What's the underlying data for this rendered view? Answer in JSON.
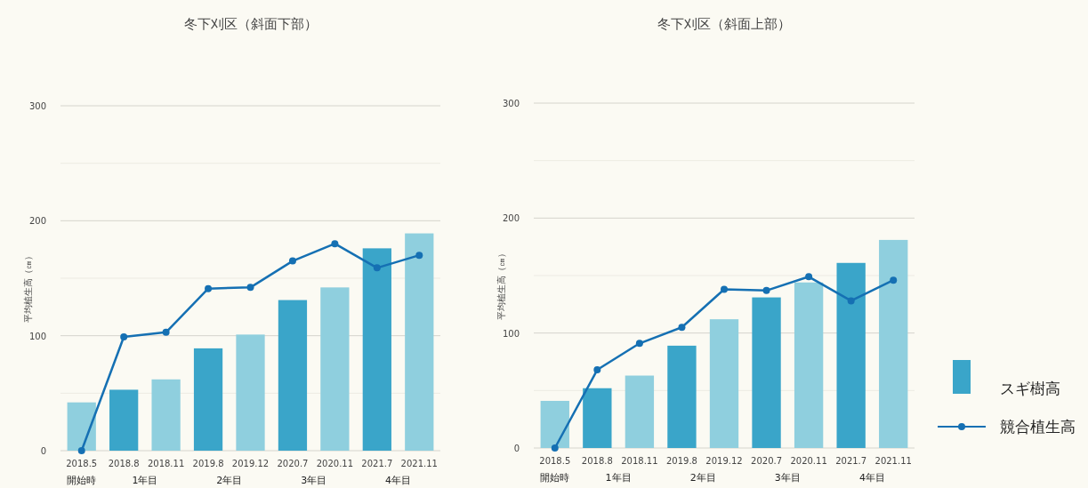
{
  "chart_data": [
    {
      "type": "bar",
      "title": "冬下刈区（斜面下部）",
      "ylabel": "平均植生高（㎝）",
      "categories": [
        "2018.5",
        "2018.8",
        "2018.11",
        "2019.8",
        "2019.12",
        "2020.7",
        "2020.11",
        "2021.7",
        "2021.11"
      ],
      "series": [
        {
          "colors": [
            "#8fcfde",
            "#3aa5c9",
            "#8fcfde",
            "#3aa5c9",
            "#8fcfde",
            "#3aa5c9",
            "#8fcfde",
            "#3aa5c9",
            "#8fcfde"
          ],
          "values": [
            42,
            53,
            62,
            89,
            101,
            131,
            142,
            176,
            189
          ]
        },
        {
          "type": "line",
          "color": "#1570b3",
          "values": [
            0,
            99,
            103,
            141,
            142,
            165,
            180,
            159,
            170
          ]
        }
      ],
      "ylim": [
        0,
        300
      ],
      "yticks": [
        0,
        {
          "value": 50,
          "label": null
        },
        100,
        {
          "value": 150,
          "label": null
        },
        200,
        {
          "value": 250,
          "label": null
        },
        300
      ],
      "grid": "y",
      "marker": "circle",
      "legend": false,
      "annotations": [
        "開始時",
        "1年目",
        "2年目",
        "3年目",
        "4年目"
      ]
    },
    {
      "type": "bar",
      "title": "冬下刈区（斜面上部）",
      "ylabel": "平均植生高（㎝）",
      "categories": [
        "2018.5",
        "2018.8",
        "2018.11",
        "2019.8",
        "2019.12",
        "2020.7",
        "2020.11",
        "2021.7",
        "2021.11"
      ],
      "series": [
        {
          "name": "スギ樹高",
          "color": "#3aa5c9",
          "colors": [
            "#8fcfde",
            "#3aa5c9",
            "#8fcfde",
            "#3aa5c9",
            "#8fcfde",
            "#3aa5c9",
            "#8fcfde",
            "#3aa5c9",
            "#8fcfde"
          ],
          "values": [
            41,
            52,
            63,
            89,
            112,
            131,
            144,
            161,
            181
          ]
        },
        {
          "type": "line",
          "name": "競合植生高",
          "color": "#1570b3",
          "values": [
            0,
            68,
            91,
            105,
            138,
            137,
            149,
            128,
            146
          ]
        }
      ],
      "ylim": [
        0,
        300
      ],
      "yticks": [
        0,
        {
          "value": 50,
          "label": null
        },
        100,
        {
          "value": 150,
          "label": null
        },
        200,
        {
          "value": 250,
          "label": null
        },
        300
      ],
      "grid": "y",
      "marker": "circle",
      "legend": "right",
      "annotations": [
        "開始時",
        "1年目",
        "2年目",
        "3年目",
        "4年目"
      ]
    }
  ]
}
